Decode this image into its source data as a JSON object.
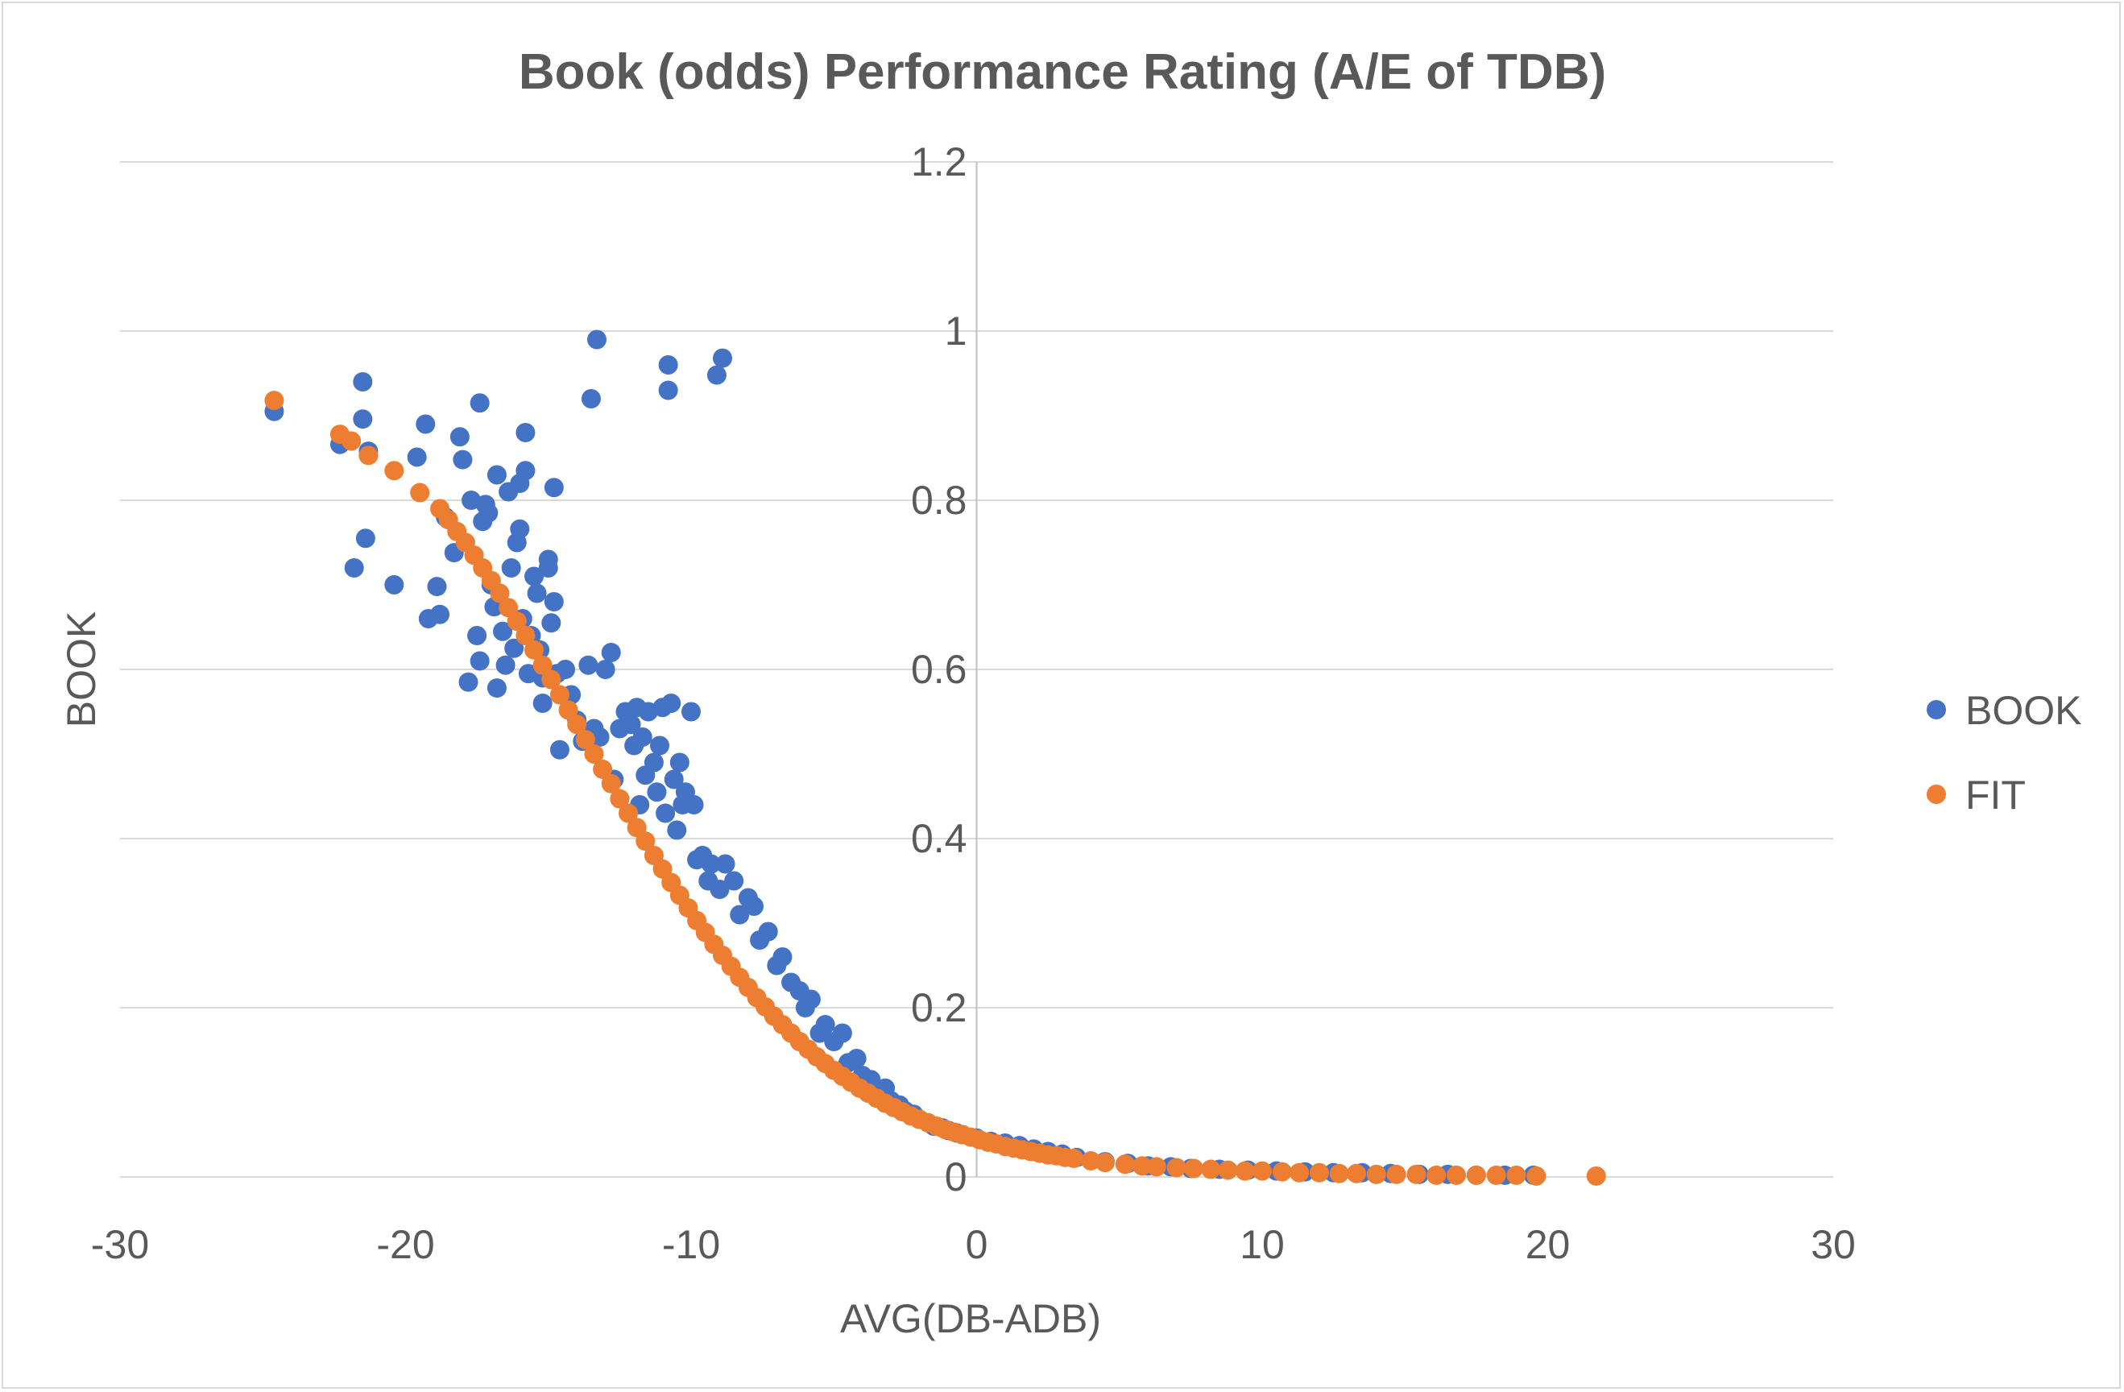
{
  "chart_data": {
    "type": "scatter",
    "title": "Book (odds) Performance Rating (A/E of TDB)",
    "xlabel": "AVG(DB-ADB)",
    "ylabel": "BOOK",
    "xlim": [
      -30,
      30
    ],
    "ylim": [
      0,
      1.2
    ],
    "x_ticks": [
      "-30",
      "-20",
      "-10",
      "0",
      "10",
      "20",
      "30"
    ],
    "y_ticks": [
      "0",
      "0.2",
      "0.4",
      "0.6",
      "0.8",
      "1",
      "1.2"
    ],
    "grid": "horizontal",
    "legend_position": "right",
    "series": [
      {
        "name": "BOOK",
        "color": "#4472c4",
        "points": [
          [
            -24.6,
            0.905
          ],
          [
            -22.3,
            0.866
          ],
          [
            -21.8,
            0.72
          ],
          [
            -21.5,
            0.94
          ],
          [
            -21.5,
            0.896
          ],
          [
            -21.4,
            0.755
          ],
          [
            -21.3,
            0.858
          ],
          [
            -20.4,
            0.7
          ],
          [
            -19.6,
            0.851
          ],
          [
            -19.3,
            0.89
          ],
          [
            -19.2,
            0.66
          ],
          [
            -18.9,
            0.698
          ],
          [
            -18.8,
            0.665
          ],
          [
            -18.6,
            0.78
          ],
          [
            -18.3,
            0.738
          ],
          [
            -18.1,
            0.875
          ],
          [
            -18.0,
            0.848
          ],
          [
            -17.8,
            0.585
          ],
          [
            -17.7,
            0.8
          ],
          [
            -17.5,
            0.64
          ],
          [
            -17.4,
            0.915
          ],
          [
            -17.4,
            0.61
          ],
          [
            -17.3,
            0.775
          ],
          [
            -17.2,
            0.795
          ],
          [
            -17.1,
            0.785
          ],
          [
            -17.0,
            0.7
          ],
          [
            -16.9,
            0.674
          ],
          [
            -16.8,
            0.83
          ],
          [
            -16.8,
            0.578
          ],
          [
            -16.6,
            0.645
          ],
          [
            -16.5,
            0.605
          ],
          [
            -16.4,
            0.81
          ],
          [
            -16.3,
            0.72
          ],
          [
            -16.2,
            0.625
          ],
          [
            -16.1,
            0.75
          ],
          [
            -16.0,
            0.82
          ],
          [
            -16.0,
            0.766
          ],
          [
            -15.9,
            0.66
          ],
          [
            -15.8,
            0.88
          ],
          [
            -15.8,
            0.835
          ],
          [
            -15.7,
            0.595
          ],
          [
            -15.6,
            0.64
          ],
          [
            -15.5,
            0.71
          ],
          [
            -15.4,
            0.69
          ],
          [
            -15.3,
            0.623
          ],
          [
            -15.2,
            0.56
          ],
          [
            -15.2,
            0.59
          ],
          [
            -15.0,
            0.72
          ],
          [
            -15.0,
            0.73
          ],
          [
            -14.9,
            0.655
          ],
          [
            -14.8,
            0.68
          ],
          [
            -14.8,
            0.815
          ],
          [
            -14.7,
            0.595
          ],
          [
            -14.6,
            0.505
          ],
          [
            -14.4,
            0.6
          ],
          [
            -14.2,
            0.57
          ],
          [
            -14.0,
            0.54
          ],
          [
            -13.8,
            0.515
          ],
          [
            -13.6,
            0.605
          ],
          [
            -13.5,
            0.92
          ],
          [
            -13.4,
            0.53
          ],
          [
            -13.3,
            0.99
          ],
          [
            -13.2,
            0.52
          ],
          [
            -13.0,
            0.6
          ],
          [
            -12.8,
            0.62
          ],
          [
            -12.7,
            0.47
          ],
          [
            -12.5,
            0.53
          ],
          [
            -12.3,
            0.55
          ],
          [
            -12.1,
            0.535
          ],
          [
            -12.0,
            0.51
          ],
          [
            -11.9,
            0.555
          ],
          [
            -11.8,
            0.44
          ],
          [
            -11.7,
            0.52
          ],
          [
            -11.6,
            0.475
          ],
          [
            -11.5,
            0.55
          ],
          [
            -11.3,
            0.49
          ],
          [
            -11.2,
            0.455
          ],
          [
            -11.1,
            0.51
          ],
          [
            -11.0,
            0.555
          ],
          [
            -10.9,
            0.43
          ],
          [
            -10.8,
            0.93
          ],
          [
            -10.8,
            0.96
          ],
          [
            -10.7,
            0.56
          ],
          [
            -10.6,
            0.47
          ],
          [
            -10.5,
            0.41
          ],
          [
            -10.4,
            0.49
          ],
          [
            -10.3,
            0.44
          ],
          [
            -10.2,
            0.455
          ],
          [
            -10.0,
            0.55
          ],
          [
            -9.9,
            0.44
          ],
          [
            -9.8,
            0.375
          ],
          [
            -9.6,
            0.38
          ],
          [
            -9.4,
            0.35
          ],
          [
            -9.3,
            0.37
          ],
          [
            -9.1,
            0.948
          ],
          [
            -9.0,
            0.34
          ],
          [
            -8.9,
            0.968
          ],
          [
            -8.8,
            0.37
          ],
          [
            -8.5,
            0.35
          ],
          [
            -8.3,
            0.31
          ],
          [
            -8.0,
            0.33
          ],
          [
            -7.8,
            0.32
          ],
          [
            -7.6,
            0.28
          ],
          [
            -7.3,
            0.29
          ],
          [
            -7.0,
            0.25
          ],
          [
            -6.8,
            0.26
          ],
          [
            -6.5,
            0.23
          ],
          [
            -6.2,
            0.22
          ],
          [
            -6.0,
            0.2
          ],
          [
            -5.8,
            0.21
          ],
          [
            -5.5,
            0.17
          ],
          [
            -5.3,
            0.18
          ],
          [
            -5.0,
            0.16
          ],
          [
            -4.7,
            0.17
          ],
          [
            -4.5,
            0.135
          ],
          [
            -4.2,
            0.14
          ],
          [
            -4.0,
            0.12
          ],
          [
            -3.7,
            0.115
          ],
          [
            -3.5,
            0.1
          ],
          [
            -3.2,
            0.105
          ],
          [
            -3.0,
            0.09
          ],
          [
            -2.7,
            0.085
          ],
          [
            -2.5,
            0.078
          ],
          [
            -2.2,
            0.074
          ],
          [
            -2.0,
            0.068
          ],
          [
            -1.7,
            0.064
          ],
          [
            -1.5,
            0.06
          ],
          [
            -1.2,
            0.058
          ],
          [
            -1.0,
            0.055
          ],
          [
            -0.7,
            0.052
          ],
          [
            -0.5,
            0.05
          ],
          [
            0.0,
            0.046
          ],
          [
            0.5,
            0.042
          ],
          [
            1.0,
            0.04
          ],
          [
            1.5,
            0.037
          ],
          [
            2.0,
            0.033
          ],
          [
            2.5,
            0.03
          ],
          [
            3.0,
            0.027
          ],
          [
            3.5,
            0.023
          ],
          [
            4.5,
            0.018
          ],
          [
            5.3,
            0.016
          ],
          [
            6.0,
            0.013
          ],
          [
            6.8,
            0.012
          ],
          [
            7.5,
            0.01
          ],
          [
            8.5,
            0.009
          ],
          [
            9.5,
            0.008
          ],
          [
            10.5,
            0.007
          ],
          [
            11.5,
            0.006
          ],
          [
            12.5,
            0.005
          ],
          [
            13.5,
            0.005
          ],
          [
            14.5,
            0.004
          ],
          [
            15.5,
            0.003
          ],
          [
            16.5,
            0.003
          ],
          [
            17.5,
            0.002
          ],
          [
            18.5,
            0.002
          ],
          [
            19.5,
            0.002
          ]
        ]
      },
      {
        "name": "FIT",
        "color": "#ed7d31",
        "points": [
          [
            -24.6,
            0.918
          ],
          [
            -22.3,
            0.878
          ],
          [
            -21.9,
            0.87
          ],
          [
            -21.3,
            0.853
          ],
          [
            -20.4,
            0.835
          ],
          [
            -19.5,
            0.809
          ],
          [
            -18.8,
            0.79
          ],
          [
            -18.5,
            0.777
          ],
          [
            -18.2,
            0.763
          ],
          [
            -17.9,
            0.75
          ],
          [
            -17.6,
            0.735
          ],
          [
            -17.3,
            0.72
          ],
          [
            -17.0,
            0.705
          ],
          [
            -16.7,
            0.69
          ],
          [
            -16.4,
            0.673
          ],
          [
            -16.1,
            0.657
          ],
          [
            -15.8,
            0.64
          ],
          [
            -15.5,
            0.623
          ],
          [
            -15.2,
            0.605
          ],
          [
            -14.9,
            0.588
          ],
          [
            -14.6,
            0.57
          ],
          [
            -14.3,
            0.552
          ],
          [
            -14.0,
            0.535
          ],
          [
            -13.7,
            0.517
          ],
          [
            -13.4,
            0.5
          ],
          [
            -13.1,
            0.482
          ],
          [
            -12.8,
            0.465
          ],
          [
            -12.5,
            0.447
          ],
          [
            -12.2,
            0.43
          ],
          [
            -11.9,
            0.413
          ],
          [
            -11.6,
            0.397
          ],
          [
            -11.3,
            0.38
          ],
          [
            -11.0,
            0.364
          ],
          [
            -10.7,
            0.348
          ],
          [
            -10.4,
            0.333
          ],
          [
            -10.1,
            0.318
          ],
          [
            -9.8,
            0.303
          ],
          [
            -9.5,
            0.289
          ],
          [
            -9.2,
            0.275
          ],
          [
            -8.9,
            0.262
          ],
          [
            -8.6,
            0.249
          ],
          [
            -8.3,
            0.236
          ],
          [
            -8.0,
            0.224
          ],
          [
            -7.7,
            0.212
          ],
          [
            -7.4,
            0.201
          ],
          [
            -7.1,
            0.19
          ],
          [
            -6.8,
            0.18
          ],
          [
            -6.5,
            0.17
          ],
          [
            -6.2,
            0.16
          ],
          [
            -5.9,
            0.151
          ],
          [
            -5.6,
            0.142
          ],
          [
            -5.3,
            0.134
          ],
          [
            -5.0,
            0.126
          ],
          [
            -4.7,
            0.119
          ],
          [
            -4.4,
            0.112
          ],
          [
            -4.1,
            0.105
          ],
          [
            -3.8,
            0.099
          ],
          [
            -3.5,
            0.093
          ],
          [
            -3.2,
            0.087
          ],
          [
            -2.9,
            0.082
          ],
          [
            -2.6,
            0.077
          ],
          [
            -2.3,
            0.072
          ],
          [
            -2.0,
            0.068
          ],
          [
            -1.7,
            0.064
          ],
          [
            -1.4,
            0.06
          ],
          [
            -1.1,
            0.056
          ],
          [
            -0.8,
            0.053
          ],
          [
            -0.5,
            0.05
          ],
          [
            -0.2,
            0.047
          ],
          [
            0.1,
            0.044
          ],
          [
            0.4,
            0.041
          ],
          [
            0.7,
            0.039
          ],
          [
            1.0,
            0.036
          ],
          [
            1.3,
            0.034
          ],
          [
            1.6,
            0.032
          ],
          [
            1.9,
            0.03
          ],
          [
            2.2,
            0.028
          ],
          [
            2.5,
            0.026
          ],
          [
            2.8,
            0.025
          ],
          [
            3.1,
            0.023
          ],
          [
            3.4,
            0.022
          ],
          [
            4.0,
            0.019
          ],
          [
            4.5,
            0.017
          ],
          [
            5.2,
            0.015
          ],
          [
            5.8,
            0.013
          ],
          [
            6.3,
            0.012
          ],
          [
            7.0,
            0.011
          ],
          [
            7.6,
            0.01
          ],
          [
            8.2,
            0.009
          ],
          [
            8.8,
            0.008
          ],
          [
            9.4,
            0.007
          ],
          [
            10.0,
            0.007
          ],
          [
            10.7,
            0.006
          ],
          [
            11.3,
            0.005
          ],
          [
            12.0,
            0.005
          ],
          [
            12.7,
            0.004
          ],
          [
            13.3,
            0.004
          ],
          [
            14.0,
            0.003
          ],
          [
            14.7,
            0.003
          ],
          [
            15.4,
            0.003
          ],
          [
            16.1,
            0.002
          ],
          [
            16.8,
            0.002
          ],
          [
            17.5,
            0.002
          ],
          [
            18.2,
            0.002
          ],
          [
            18.9,
            0.002
          ],
          [
            19.6,
            0.001
          ],
          [
            21.7,
            0.001
          ]
        ]
      }
    ]
  }
}
